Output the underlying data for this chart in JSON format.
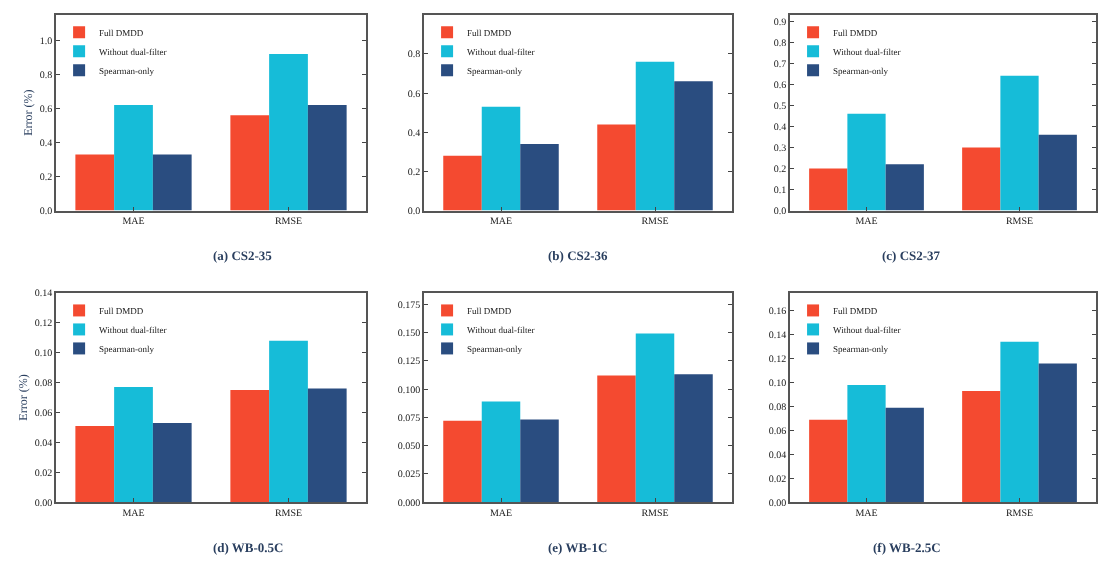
{
  "chart_data": [
    {
      "type": "bar",
      "title": "(a) CS2-35",
      "ylabel": "Error (%)",
      "categories": [
        "MAE",
        "RMSE"
      ],
      "ylim": [
        0,
        1.15
      ],
      "yticks": [
        {
          "value": 0,
          "label": "0.0"
        },
        0.2,
        0.4,
        0.6,
        0.8,
        {
          "value": 1,
          "label": "1.0"
        }
      ],
      "grid": false,
      "legend": "top left",
      "series": [
        {
          "name": "Full DMDD",
          "color": "#f44a30",
          "values": [
            0.33,
            0.56
          ]
        },
        {
          "name": "Without dual-filter",
          "color": "#16bcd8",
          "values": [
            0.62,
            0.92
          ]
        },
        {
          "name": "Spearman-only",
          "color": "#2a4d80",
          "values": [
            0.33,
            0.62
          ]
        }
      ]
    },
    {
      "type": "bar",
      "title": "(b) CS2-36",
      "categories": [
        "MAE",
        "RMSE"
      ],
      "ylim": [
        0,
        1.0
      ],
      "yticks": [
        {
          "value": 0,
          "label": "0.0"
        },
        0.2,
        0.4,
        0.6,
        0.8
      ],
      "grid": false,
      "legend": "top left",
      "series": [
        {
          "name": "Full DMDD",
          "color": "#f44a30",
          "values": [
            0.28,
            0.44
          ]
        },
        {
          "name": "Without dual-filter",
          "color": "#16bcd8",
          "values": [
            0.53,
            0.76
          ]
        },
        {
          "name": "Spearman-only",
          "color": "#2a4d80",
          "values": [
            0.34,
            0.66
          ]
        }
      ]
    },
    {
      "type": "bar",
      "title": "(c) CS2-37",
      "categories": [
        "MAE",
        "RMSE"
      ],
      "ylim": [
        0,
        0.93
      ],
      "yticks": [
        {
          "value": 0,
          "label": "0.0"
        },
        0.1,
        0.2,
        0.3,
        0.4,
        0.5,
        0.6,
        0.7,
        0.8,
        0.9
      ],
      "grid": false,
      "legend": "top left",
      "series": [
        {
          "name": "Full DMDD",
          "color": "#f44a30",
          "values": [
            0.2,
            0.3
          ]
        },
        {
          "name": "Without dual-filter",
          "color": "#16bcd8",
          "values": [
            0.46,
            0.64
          ]
        },
        {
          "name": "Spearman-only",
          "color": "#2a4d80",
          "values": [
            0.22,
            0.36
          ]
        }
      ]
    },
    {
      "type": "bar",
      "title": "(d) WB-0.5C",
      "ylabel": "Error (%)",
      "categories": [
        "MAE",
        "RMSE"
      ],
      "ylim": [
        0,
        0.14
      ],
      "yticks": [
        {
          "value": 0,
          "label": "0.00"
        },
        0.02,
        0.04,
        0.06,
        0.08,
        {
          "value": 0.1,
          "label": "0.10"
        },
        0.12,
        0.14
      ],
      "grid": false,
      "legend": "top left",
      "series": [
        {
          "name": "Full DMDD",
          "color": "#f44a30",
          "values": [
            0.051,
            0.075
          ]
        },
        {
          "name": "Without dual-filter",
          "color": "#16bcd8",
          "values": [
            0.077,
            0.108
          ]
        },
        {
          "name": "Spearman-only",
          "color": "#2a4d80",
          "values": [
            0.053,
            0.076
          ]
        }
      ]
    },
    {
      "type": "bar",
      "title": "(e) WB-1C",
      "categories": [
        "MAE",
        "RMSE"
      ],
      "ylim": [
        0,
        0.185
      ],
      "yticks": [
        {
          "value": 0,
          "label": "0.000"
        },
        0.025,
        {
          "value": 0.05,
          "label": "0.050"
        },
        0.075,
        {
          "value": 0.1,
          "label": "0.100"
        },
        0.125,
        {
          "value": 0.15,
          "label": "0.150"
        },
        0.175
      ],
      "grid": false,
      "legend": "top left",
      "series": [
        {
          "name": "Full DMDD",
          "color": "#f44a30",
          "values": [
            0.072,
            0.112
          ]
        },
        {
          "name": "Without dual-filter",
          "color": "#16bcd8",
          "values": [
            0.089,
            0.149
          ]
        },
        {
          "name": "Spearman-only",
          "color": "#2a4d80",
          "values": [
            0.073,
            0.113
          ]
        }
      ]
    },
    {
      "type": "bar",
      "title": "(f) WB-2.5C",
      "categories": [
        "MAE",
        "RMSE"
      ],
      "ylim": [
        0,
        0.175
      ],
      "yticks": [
        {
          "value": 0,
          "label": "0.00"
        },
        0.02,
        0.04,
        0.06,
        0.08,
        {
          "value": 0.1,
          "label": "0.10"
        },
        0.12,
        0.14,
        0.16
      ],
      "grid": false,
      "legend": "top left",
      "series": [
        {
          "name": "Full DMDD",
          "color": "#f44a30",
          "values": [
            0.069,
            0.093
          ]
        },
        {
          "name": "Without dual-filter",
          "color": "#16bcd8",
          "values": [
            0.098,
            0.134
          ]
        },
        {
          "name": "Spearman-only",
          "color": "#2a4d80",
          "values": [
            0.079,
            0.116
          ]
        }
      ]
    }
  ]
}
